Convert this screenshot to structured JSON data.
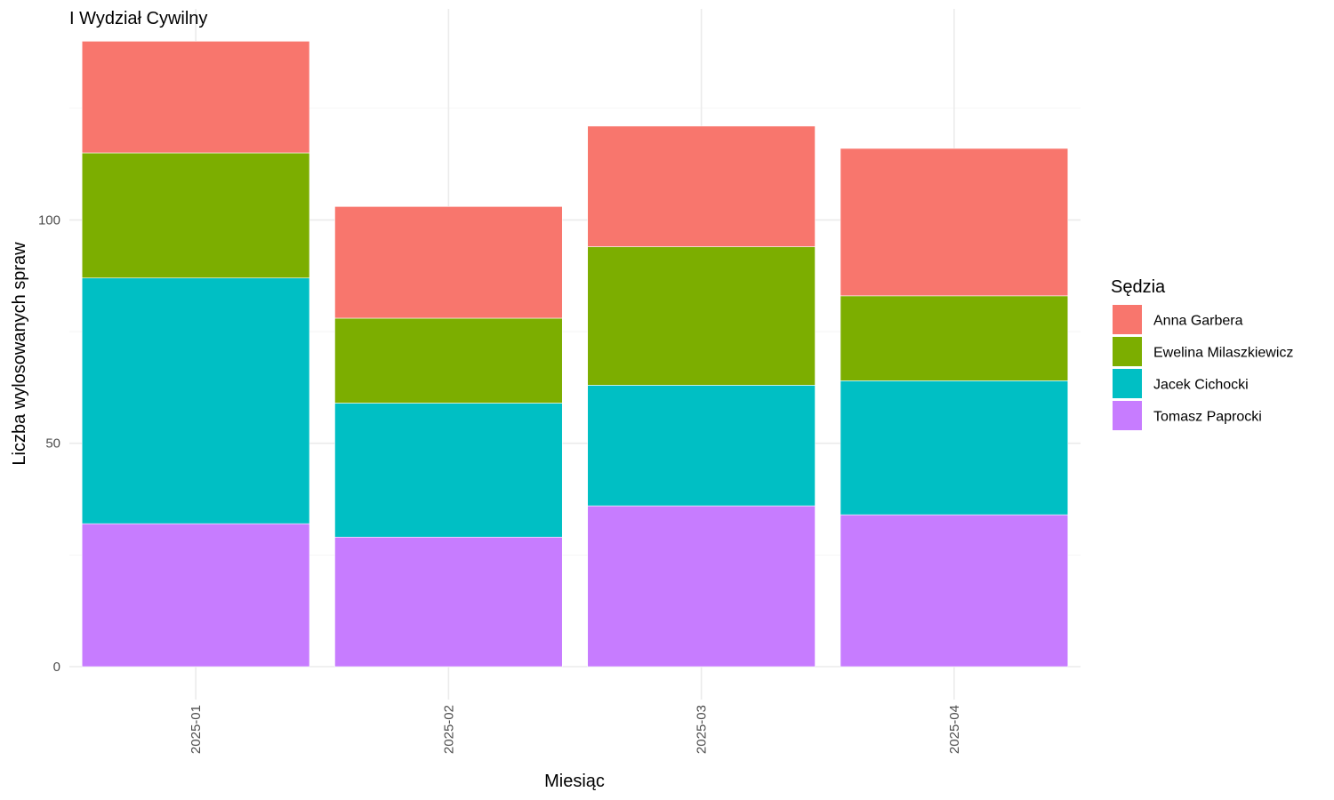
{
  "chart_data": {
    "type": "bar",
    "stacked": true,
    "title": "I Wydział Cywilny",
    "xlabel": "Miesiąc",
    "ylabel": "Liczba wylosowanych spraw",
    "categories": [
      "2025-01",
      "2025-02",
      "2025-03",
      "2025-04"
    ],
    "ylim": [
      0,
      147
    ],
    "yticks": [
      0,
      50,
      100
    ],
    "grid": true,
    "legend": {
      "title": "Sędzia",
      "placement": "right"
    },
    "series": [
      {
        "name": "Tomasz Paprocki",
        "color": "#C77CFF",
        "values": [
          32,
          29,
          36,
          34
        ]
      },
      {
        "name": "Jacek Cichocki",
        "color": "#00BFC4",
        "values": [
          55,
          30,
          27,
          30
        ]
      },
      {
        "name": "Ewelina Milaszkiewicz",
        "color": "#7CAE00",
        "values": [
          28,
          19,
          31,
          19
        ]
      },
      {
        "name": "Anna Garbera",
        "color": "#F8766D",
        "values": [
          25,
          25,
          27,
          33
        ]
      }
    ]
  }
}
